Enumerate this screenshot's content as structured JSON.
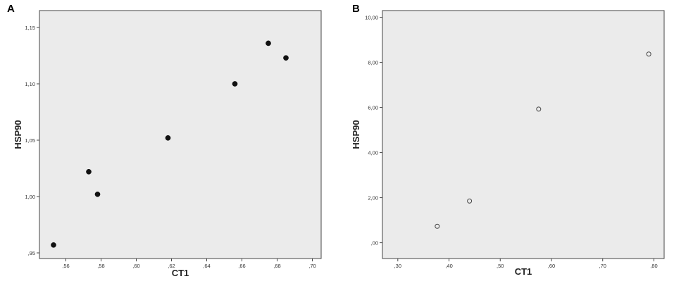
{
  "chart_data": [
    {
      "type": "scatter",
      "panel_label": "A",
      "xlabel": "CT1",
      "ylabel": "HSP90",
      "xlim": [
        0.545,
        0.705
      ],
      "ylim": [
        0.945,
        1.165
      ],
      "x_ticks": [
        0.56,
        0.58,
        0.6,
        0.62,
        0.64,
        0.66,
        0.68,
        0.7
      ],
      "x_tick_labels": [
        ",56",
        ",58",
        ",60",
        ",62",
        ",64",
        ",66",
        ",68",
        ",70"
      ],
      "y_ticks": [
        0.95,
        1.0,
        1.05,
        1.1,
        1.15
      ],
      "y_tick_labels": [
        ",95",
        "1,00",
        "1,05",
        "1,10",
        "1,15"
      ],
      "marker": "filled",
      "grid": false,
      "points": [
        {
          "x": 0.553,
          "y": 0.957
        },
        {
          "x": 0.573,
          "y": 1.022
        },
        {
          "x": 0.578,
          "y": 1.002
        },
        {
          "x": 0.618,
          "y": 1.052
        },
        {
          "x": 0.656,
          "y": 1.1
        },
        {
          "x": 0.675,
          "y": 1.136
        },
        {
          "x": 0.685,
          "y": 1.123
        }
      ]
    },
    {
      "type": "scatter",
      "panel_label": "B",
      "xlabel": "CT1",
      "ylabel": "HSP90",
      "xlim": [
        0.27,
        0.82
      ],
      "ylim": [
        -0.7,
        10.3
      ],
      "x_ticks": [
        0.3,
        0.4,
        0.5,
        0.6,
        0.7,
        0.8
      ],
      "x_tick_labels": [
        ",30",
        ",40",
        ",50",
        ",60",
        ",70",
        ",80"
      ],
      "y_ticks": [
        0,
        2,
        4,
        6,
        8,
        10
      ],
      "y_tick_labels": [
        ",00",
        "2,00",
        "4,00",
        "6,00",
        "8,00",
        "10,00"
      ],
      "marker": "open",
      "grid": false,
      "points": [
        {
          "x": 0.377,
          "y": 0.73
        },
        {
          "x": 0.44,
          "y": 1.85
        },
        {
          "x": 0.575,
          "y": 5.93
        },
        {
          "x": 0.79,
          "y": 8.37
        }
      ]
    }
  ]
}
